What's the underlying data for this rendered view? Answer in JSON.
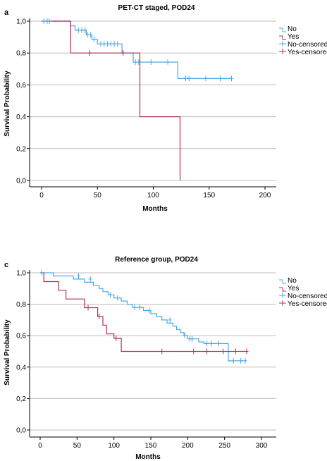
{
  "colors": {
    "no": "#4aa8e6",
    "yes": "#b0305a",
    "grid": "#bdbdbd",
    "axis": "#000000"
  },
  "chart_data": [
    {
      "type": "line",
      "panel": "a",
      "title": "PET-CT staged, POD24",
      "xlabel": "Months",
      "ylabel": "Survival Probability",
      "xlim": [
        0,
        200
      ],
      "ylim": [
        0,
        1
      ],
      "xticks": [
        "0",
        "50",
        "100",
        "150",
        "200"
      ],
      "yticks": [
        "0,0",
        "0,2",
        "0,4",
        "0,6",
        "0,8",
        "1,0"
      ],
      "grid": "horizontal",
      "legend": "right",
      "legend_entries": [
        "No",
        "Yes",
        "No-censored",
        "Yes-censored"
      ],
      "series": [
        {
          "name": "No",
          "step": [
            [
              0,
              1
            ],
            [
              26,
              1
            ],
            [
              26,
              0.971
            ],
            [
              30,
              0.971
            ],
            [
              30,
              0.943
            ],
            [
              40,
              0.943
            ],
            [
              40,
              0.914
            ],
            [
              45,
              0.914
            ],
            [
              45,
              0.886
            ],
            [
              50,
              0.886
            ],
            [
              50,
              0.857
            ],
            [
              72,
              0.857
            ],
            [
              72,
              0.8
            ],
            [
              82,
              0.8
            ],
            [
              82,
              0.743
            ],
            [
              100,
              0.743
            ],
            [
              100,
              0.743
            ],
            [
              122,
              0.743
            ],
            [
              122,
              0.64
            ],
            [
              170,
              0.64
            ]
          ]
        },
        {
          "name": "Yes",
          "step": [
            [
              0,
              1
            ],
            [
              26,
              1
            ],
            [
              26,
              0.8
            ],
            [
              88,
              0.8
            ],
            [
              88,
              0.4
            ],
            [
              124,
              0.4
            ],
            [
              124,
              0
            ]
          ]
        },
        {
          "name": "No-censored",
          "points": [
            [
              2,
              1
            ],
            [
              5,
              1
            ],
            [
              7,
              1
            ],
            [
              33,
              0.943
            ],
            [
              36,
              0.943
            ],
            [
              39,
              0.943
            ],
            [
              41,
              0.914
            ],
            [
              44,
              0.914
            ],
            [
              47,
              0.886
            ],
            [
              53,
              0.857
            ],
            [
              56,
              0.857
            ],
            [
              59,
              0.857
            ],
            [
              62,
              0.857
            ],
            [
              65,
              0.857
            ],
            [
              68,
              0.857
            ],
            [
              84,
              0.743
            ],
            [
              87,
              0.743
            ],
            [
              98,
              0.743
            ],
            [
              113,
              0.743
            ],
            [
              129,
              0.64
            ],
            [
              132,
              0.64
            ],
            [
              147,
              0.64
            ],
            [
              160,
              0.64
            ],
            [
              170,
              0.64
            ]
          ]
        },
        {
          "name": "Yes-censored",
          "points": [
            [
              43,
              0.8
            ],
            [
              73,
              0.8
            ]
          ]
        }
      ]
    },
    {
      "type": "line",
      "panel": "c",
      "title": "Reference group, POD24",
      "xlabel": "Months",
      "ylabel": "Survival Probability",
      "xlim": [
        0,
        300
      ],
      "ylim": [
        0,
        1
      ],
      "xticks": [
        "0",
        "50",
        "100",
        "150",
        "200",
        "250",
        "300"
      ],
      "yticks": [
        "0,0",
        "0,2",
        "0,4",
        "0,6",
        "0,8",
        "1,0"
      ],
      "grid": "horizontal",
      "legend": "right",
      "legend_entries": [
        "No",
        "Yes",
        "No-censored",
        "Yes-censored"
      ],
      "series": [
        {
          "name": "No",
          "step": [
            [
              0,
              1
            ],
            [
              18,
              1
            ],
            [
              18,
              0.98
            ],
            [
              45,
              0.98
            ],
            [
              45,
              0.96
            ],
            [
              60,
              0.96
            ],
            [
              60,
              0.94
            ],
            [
              72,
              0.94
            ],
            [
              72,
              0.92
            ],
            [
              80,
              0.92
            ],
            [
              80,
              0.9
            ],
            [
              85,
              0.9
            ],
            [
              85,
              0.88
            ],
            [
              92,
              0.88
            ],
            [
              92,
              0.86
            ],
            [
              100,
              0.86
            ],
            [
              100,
              0.84
            ],
            [
              110,
              0.84
            ],
            [
              110,
              0.82
            ],
            [
              118,
              0.82
            ],
            [
              118,
              0.8
            ],
            [
              125,
              0.8
            ],
            [
              125,
              0.78
            ],
            [
              140,
              0.78
            ],
            [
              140,
              0.76
            ],
            [
              150,
              0.76
            ],
            [
              150,
              0.74
            ],
            [
              158,
              0.74
            ],
            [
              158,
              0.72
            ],
            [
              165,
              0.72
            ],
            [
              165,
              0.7
            ],
            [
              172,
              0.7
            ],
            [
              172,
              0.68
            ],
            [
              180,
              0.68
            ],
            [
              180,
              0.66
            ],
            [
              185,
              0.66
            ],
            [
              185,
              0.64
            ],
            [
              190,
              0.64
            ],
            [
              190,
              0.62
            ],
            [
              195,
              0.62
            ],
            [
              195,
              0.6
            ],
            [
              200,
              0.6
            ],
            [
              200,
              0.58
            ],
            [
              215,
              0.58
            ],
            [
              215,
              0.56
            ],
            [
              222,
              0.56
            ],
            [
              222,
              0.55
            ],
            [
              255,
              0.55
            ],
            [
              255,
              0.44
            ],
            [
              280,
              0.44
            ]
          ]
        },
        {
          "name": "Yes",
          "step": [
            [
              0,
              1
            ],
            [
              5,
              1
            ],
            [
              5,
              0.944
            ],
            [
              25,
              0.944
            ],
            [
              25,
              0.889
            ],
            [
              35,
              0.889
            ],
            [
              35,
              0.833
            ],
            [
              60,
              0.833
            ],
            [
              60,
              0.778
            ],
            [
              78,
              0.778
            ],
            [
              78,
              0.722
            ],
            [
              85,
              0.722
            ],
            [
              85,
              0.667
            ],
            [
              90,
              0.667
            ],
            [
              90,
              0.611
            ],
            [
              100,
              0.611
            ],
            [
              100,
              0.583
            ],
            [
              110,
              0.583
            ],
            [
              110,
              0.5
            ],
            [
              280,
              0.5
            ]
          ]
        },
        {
          "name": "No-censored",
          "points": [
            [
              2,
              1
            ],
            [
              52,
              0.98
            ],
            [
              68,
              0.96
            ],
            [
              95,
              0.86
            ],
            [
              105,
              0.84
            ],
            [
              128,
              0.78
            ],
            [
              135,
              0.78
            ],
            [
              148,
              0.76
            ],
            [
              176,
              0.7
            ],
            [
              196,
              0.6
            ],
            [
              203,
              0.58
            ],
            [
              206,
              0.58
            ],
            [
              226,
              0.55
            ],
            [
              232,
              0.55
            ],
            [
              242,
              0.55
            ],
            [
              262,
              0.44
            ],
            [
              272,
              0.44
            ],
            [
              278,
              0.44
            ]
          ]
        },
        {
          "name": "Yes-censored",
          "points": [
            [
              65,
              0.778
            ],
            [
              80,
              0.722
            ],
            [
              103,
              0.583
            ],
            [
              165,
              0.5
            ],
            [
              208,
              0.5
            ],
            [
              226,
              0.5
            ],
            [
              248,
              0.5
            ],
            [
              265,
              0.5
            ],
            [
              280,
              0.5
            ]
          ]
        }
      ]
    }
  ]
}
